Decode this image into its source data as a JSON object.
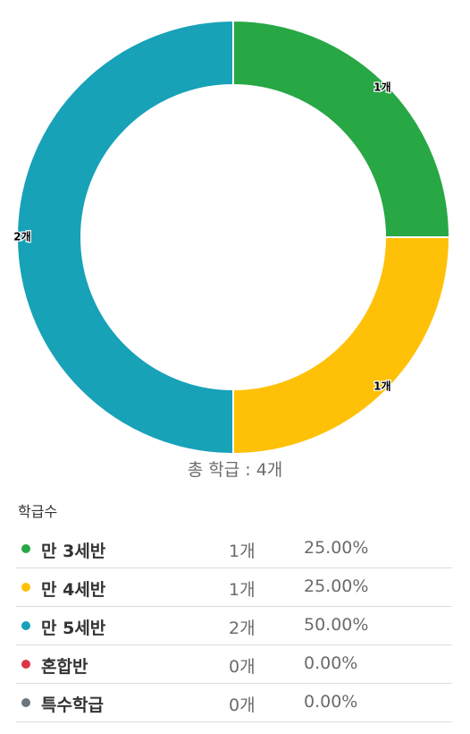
{
  "chart_data": {
    "type": "pie",
    "categories": [
      "만 3세반",
      "만 4세반",
      "만 5세반",
      "혼합반",
      "특수학급"
    ],
    "values": [
      1,
      1,
      2,
      0,
      0
    ],
    "slice_labels": [
      "1개",
      "1개",
      "2개",
      "0개",
      "0개"
    ],
    "percentages": [
      "25.00%",
      "25.00%",
      "50.00%",
      "0.00%",
      "0.00%"
    ],
    "colors": [
      "#28a745",
      "#ffc107",
      "#17a2b8",
      "#dc3545",
      "#6c757d"
    ],
    "donut": true
  },
  "total_label": "총 학급 : 4개",
  "legend_title": "학급수",
  "legend": [
    {
      "name": "만 3세반",
      "count": "1개",
      "percent": "25.00%",
      "color": "#28a745"
    },
    {
      "name": "만 4세반",
      "count": "1개",
      "percent": "25.00%",
      "color": "#ffc107"
    },
    {
      "name": "만 5세반",
      "count": "2개",
      "percent": "50.00%",
      "color": "#17a2b8"
    },
    {
      "name": "혼합반",
      "count": "0개",
      "percent": "0.00%",
      "color": "#dc3545"
    },
    {
      "name": "특수학급",
      "count": "0개",
      "percent": "0.00%",
      "color": "#6c757d"
    }
  ]
}
